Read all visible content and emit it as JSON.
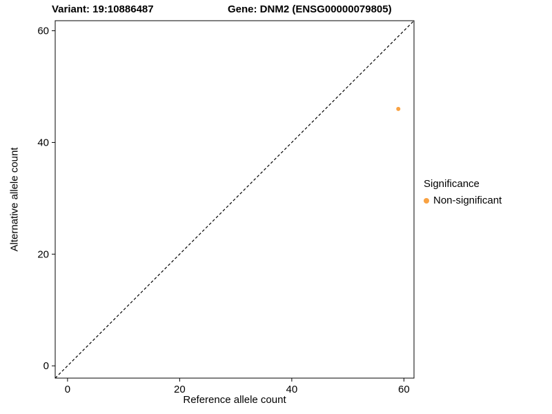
{
  "titles": {
    "variant": "Variant: 19:10886487",
    "gene": "Gene: DNM2 (ENSG00000079805)"
  },
  "axes": {
    "x_label": "Reference allele count",
    "y_label": "Alternative allele count"
  },
  "legend": {
    "title": "Significance",
    "items": [
      {
        "label": "Non-significant",
        "color": "#F9A242"
      }
    ]
  },
  "chart_data": {
    "type": "scatter",
    "title": "Variant: 19:10886487  /  Gene: DNM2 (ENSG00000079805)",
    "xlabel": "Reference allele count",
    "ylabel": "Alternative allele count",
    "xlim": [
      -2.2,
      61.8
    ],
    "ylim": [
      -2.2,
      61.8
    ],
    "x_ticks": [
      0,
      20,
      40,
      60
    ],
    "y_ticks": [
      0,
      20,
      40,
      60
    ],
    "grid": false,
    "legend_position": "right",
    "series": [
      {
        "name": "Non-significant",
        "color": "#F9A242",
        "points": [
          {
            "x": 59,
            "y": 46
          }
        ]
      }
    ],
    "reference_line": {
      "kind": "identity-diagonal",
      "style": "dashed",
      "color": "#000000",
      "x1": -2.2,
      "y1": -2.2,
      "x2": 61.8,
      "y2": 61.8
    }
  }
}
